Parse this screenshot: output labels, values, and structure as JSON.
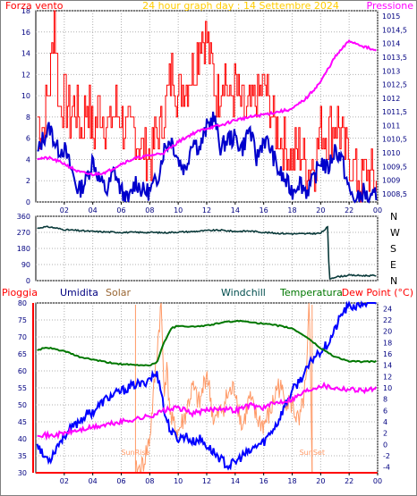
{
  "colors": {
    "wind": "#ff0000",
    "wind_avg": "#0000cc",
    "pressure": "#ff00ff",
    "direction": "#0a3a3a",
    "humidity": "#0000ff",
    "solar": "#ff9966",
    "temperature": "#007700",
    "dewpoint": "#ff00ff",
    "rain": "#ff0000",
    "sun_marker": "#ff9966"
  },
  "chart_data": [
    {
      "type": "line",
      "title": "24 hour graph day : 14 Settembre 2024",
      "legend_left": "Forza vento",
      "legend_right": "Pressione",
      "x_ticks": [
        "02",
        "04",
        "06",
        "08",
        "10",
        "12",
        "14",
        "16",
        "18",
        "20",
        "22",
        "00"
      ],
      "x_tick_hours": [
        2,
        4,
        6,
        8,
        10,
        12,
        14,
        16,
        18,
        20,
        22,
        24
      ],
      "x_range_hours": [
        0,
        24
      ],
      "y_left_ticks": [
        "18",
        "16",
        "14",
        "12",
        "10",
        "8",
        "6",
        "4",
        "2",
        "0"
      ],
      "y_left_values": [
        18,
        16,
        14,
        12,
        10,
        8,
        6,
        4,
        2,
        0
      ],
      "y_left_range": [
        0,
        18
      ],
      "y_right_ticks": [
        "1015",
        "1014,5",
        "1014",
        "1013,5",
        "1013",
        "1012,5",
        "1012",
        "1011,5",
        "1011",
        "1010,5",
        "1010",
        "1009,5",
        "1009",
        "1008,5"
      ],
      "y_right_values": [
        1015,
        1014.5,
        1014,
        1013.5,
        1013,
        1012.5,
        1012,
        1011.5,
        1011,
        1010.5,
        1010,
        1009.5,
        1009,
        1008.5
      ],
      "y_right_range": [
        1008.2,
        1015.2
      ],
      "grid": true,
      "series": [
        {
          "name": "Forza vento",
          "axis": "left",
          "style": "gust",
          "x": [
            0,
            0.5,
            1,
            1.3,
            1.6,
            2,
            2.4,
            2.8,
            3.2,
            3.6,
            4,
            4.4,
            4.8,
            5.2,
            5.6,
            6,
            6.4,
            6.8,
            7.2,
            7.6,
            8,
            8.4,
            8.8,
            9.2,
            9.6,
            10,
            10.4,
            10.8,
            11.2,
            11.6,
            12,
            12.4,
            12.8,
            13.2,
            13.6,
            14,
            14.4,
            14.8,
            15.2,
            15.6,
            16,
            16.4,
            16.8,
            17.2,
            17.6,
            18,
            18.4,
            18.8,
            19.2,
            19.6,
            20,
            20.4,
            20.8,
            21.2,
            21.6,
            22,
            22.4,
            22.8,
            23.2,
            23.6,
            24
          ],
          "y": [
            8,
            7,
            12,
            18,
            9,
            10,
            8,
            9,
            7,
            10,
            6,
            9,
            8,
            7,
            9,
            8,
            6,
            7,
            6,
            5,
            4,
            6,
            7,
            10,
            13,
            10,
            11,
            12,
            13,
            16,
            15,
            12,
            10,
            13,
            9,
            11,
            9,
            8,
            9,
            10,
            11,
            9,
            7,
            6,
            5,
            4,
            5,
            4,
            3,
            4,
            7,
            6,
            7,
            8,
            5,
            4,
            3,
            2,
            3,
            2,
            2
          ]
        },
        {
          "name": "Wind average",
          "axis": "left",
          "style": "avg",
          "x": [
            0,
            0.5,
            1,
            1.5,
            2,
            2.5,
            3,
            3.5,
            4,
            4.5,
            5,
            5.5,
            6,
            6.5,
            7,
            7.5,
            8,
            8.5,
            9,
            9.5,
            10,
            10.5,
            11,
            11.5,
            12,
            12.5,
            13,
            13.5,
            14,
            14.5,
            15,
            15.5,
            16,
            16.5,
            17,
            17.5,
            18,
            18.5,
            19,
            19.5,
            20,
            20.5,
            21,
            21.5,
            22,
            22.5,
            23,
            23.5,
            24
          ],
          "y": [
            4,
            6,
            7,
            5,
            5,
            3,
            1,
            2,
            4,
            2,
            1,
            3,
            1,
            0,
            2,
            1,
            1,
            2,
            5,
            6,
            4,
            3,
            6,
            5,
            7,
            8,
            5,
            6,
            6,
            5,
            7,
            4,
            6,
            5,
            3,
            2,
            1,
            2,
            1,
            2,
            4,
            3,
            5,
            4,
            1,
            0,
            1,
            0,
            1
          ]
        },
        {
          "name": "Pressione",
          "axis": "right",
          "style": "smooth",
          "x": [
            0,
            1,
            2,
            3,
            4,
            5,
            6,
            7,
            8,
            9,
            10,
            11,
            12,
            13,
            14,
            15,
            16,
            17,
            18,
            19,
            20,
            21,
            22,
            23,
            24
          ],
          "y": [
            1009.8,
            1009.8,
            1009.6,
            1009.3,
            1009.2,
            1009.3,
            1009.6,
            1009.8,
            1009.9,
            1010.0,
            1010.4,
            1010.7,
            1010.9,
            1011.0,
            1011.2,
            1011.3,
            1011.4,
            1011.5,
            1011.6,
            1012.0,
            1012.6,
            1013.5,
            1014.1,
            1013.9,
            1013.7
          ]
        }
      ]
    },
    {
      "type": "line",
      "title": "",
      "y_ticks": [
        "360",
        "270",
        "180",
        "90",
        "0"
      ],
      "y_values": [
        360,
        270,
        180,
        90,
        0
      ],
      "y_range": [
        0,
        360
      ],
      "compass_labels": [
        "N",
        "W",
        "S",
        "E",
        "N"
      ],
      "grid": true,
      "series": [
        {
          "name": "Wind direction",
          "x": [
            0,
            0.5,
            1,
            2,
            3,
            4,
            5,
            6,
            7,
            8,
            9,
            10,
            11,
            12,
            13,
            14,
            15,
            16,
            17,
            18,
            19,
            20,
            20.5,
            20.6,
            21,
            22,
            23,
            24
          ],
          "y": [
            290,
            300,
            300,
            285,
            280,
            275,
            272,
            270,
            270,
            270,
            268,
            272,
            274,
            280,
            282,
            275,
            278,
            270,
            265,
            262,
            262,
            265,
            300,
            10,
            20,
            30,
            28,
            28
          ]
        }
      ]
    },
    {
      "type": "line",
      "title": "",
      "legend": [
        "Pioggia",
        "Umidita",
        "Solar",
        "Windchill",
        "Temperatura",
        "Dew Point (°C)"
      ],
      "x_ticks": [
        "02",
        "04",
        "06",
        "08",
        "10",
        "12",
        "14",
        "16",
        "18",
        "20",
        "22",
        "00"
      ],
      "x_tick_hours": [
        2,
        4,
        6,
        8,
        10,
        12,
        14,
        16,
        18,
        20,
        22,
        24
      ],
      "y_left_ticks": [
        "80",
        "75",
        "70",
        "65",
        "60",
        "55",
        "50",
        "45",
        "40",
        "35",
        "30"
      ],
      "y_left_values": [
        80,
        75,
        70,
        65,
        60,
        55,
        50,
        45,
        40,
        35,
        30
      ],
      "y_left_range": [
        30,
        80
      ],
      "y_right_ticks": [
        "24",
        "22",
        "20",
        "18",
        "16",
        "14",
        "12",
        "10",
        "8",
        "6",
        "4",
        "2",
        "0",
        "-2",
        "-4"
      ],
      "y_right_values": [
        24,
        22,
        20,
        18,
        16,
        14,
        12,
        10,
        8,
        6,
        4,
        2,
        0,
        -2,
        -4
      ],
      "y_right_range": [
        -5,
        25
      ],
      "markers": [
        {
          "label": "SunRise",
          "hour": 7.0
        },
        {
          "label": "SunSet",
          "hour": 19.4
        }
      ],
      "grid": true,
      "series": [
        {
          "name": "Umidita",
          "axis": "left",
          "x": [
            0,
            0.5,
            1,
            1.5,
            2,
            2.5,
            3,
            3.5,
            4,
            4.5,
            5,
            5.5,
            6,
            6.5,
            7,
            7.5,
            8,
            8.5,
            8.8,
            9,
            9.5,
            10,
            10.5,
            11,
            11.5,
            12,
            12.5,
            13,
            13.5,
            14,
            14.5,
            15,
            15.5,
            16,
            16.5,
            17,
            17.5,
            18,
            18.5,
            19,
            19.5,
            20,
            20.5,
            21,
            21.5,
            22,
            22.5,
            23,
            23.5,
            24
          ],
          "y": [
            40,
            35,
            34,
            38,
            41,
            43,
            45,
            47,
            48,
            50,
            52,
            53,
            54,
            55,
            56,
            56,
            58,
            59,
            55,
            48,
            42,
            40,
            41,
            39,
            40,
            38,
            36,
            34,
            32,
            33,
            35,
            36,
            38,
            39,
            42,
            45,
            50,
            54,
            57,
            60,
            64,
            66,
            68,
            72,
            77,
            79,
            79,
            80,
            80,
            80
          ]
        },
        {
          "name": "Solar",
          "axis": "left",
          "x": [
            7.0,
            7.5,
            8.0,
            8.3,
            8.6,
            8.8,
            9.0,
            9.2,
            9.5,
            10,
            10.5,
            11,
            11.5,
            12,
            12.5,
            13,
            13.5,
            14,
            14.5,
            15,
            15.5,
            16,
            16.5,
            17,
            17.5,
            18,
            18.5,
            19,
            19.2,
            19.4
          ],
          "y": [
            30,
            32,
            40,
            55,
            70,
            80,
            55,
            60,
            45,
            42,
            47,
            55,
            50,
            60,
            45,
            48,
            53,
            55,
            43,
            52,
            46,
            44,
            48,
            56,
            52,
            50,
            44,
            57,
            80,
            30
          ]
        },
        {
          "name": "Temperatura",
          "axis": "right",
          "x": [
            0,
            0.5,
            1,
            2,
            3,
            4,
            5,
            6,
            7,
            8,
            8.5,
            9,
            9.5,
            10,
            11,
            12,
            13,
            14,
            15,
            16,
            17,
            18,
            19,
            19.5,
            20,
            21,
            22,
            23,
            24
          ],
          "y": [
            16.5,
            17,
            17,
            16.5,
            15.5,
            15,
            14.5,
            14.2,
            14,
            14,
            14.5,
            18,
            20.5,
            21,
            20.8,
            21,
            21.5,
            21.8,
            21.7,
            21.3,
            21,
            20.5,
            19,
            18,
            17,
            15.5,
            14.7,
            14.6,
            14.7
          ]
        },
        {
          "name": "Dew Point (°C)",
          "axis": "right",
          "x": [
            0,
            1,
            2,
            3,
            4,
            5,
            6,
            7,
            8,
            9,
            10,
            11,
            12,
            13,
            14,
            15,
            16,
            17,
            18,
            19,
            20,
            21,
            22,
            23,
            24
          ],
          "y": [
            2.0,
            1.5,
            2.0,
            2.5,
            3.0,
            3.5,
            4.0,
            4.5,
            5.0,
            6.0,
            6.5,
            5.5,
            6.0,
            6.5,
            6.0,
            7.0,
            6.5,
            7.5,
            8.0,
            9.5,
            10.5,
            10.0,
            9.8,
            9.6,
            9.8
          ]
        },
        {
          "name": "Pioggia",
          "axis": "left",
          "x": [
            0,
            24
          ],
          "y": [
            30,
            30
          ]
        }
      ]
    }
  ]
}
